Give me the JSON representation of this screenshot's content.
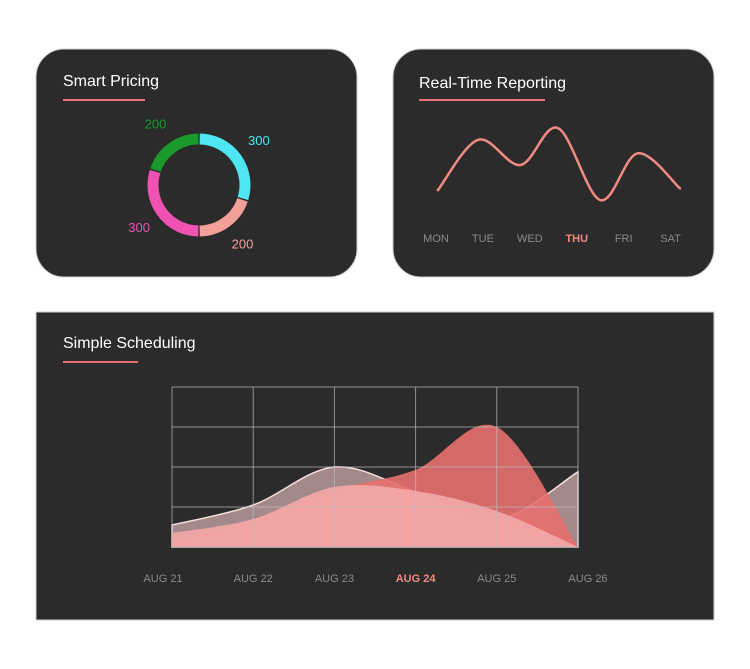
{
  "chart_data": [
    {
      "type": "donut",
      "title": "Smart Pricing",
      "values": [
        300,
        200,
        300,
        200
      ],
      "colors": [
        "#4ee6f2",
        "#f4a09a",
        "#f052b4",
        "#1a9a2a"
      ]
    },
    {
      "type": "line",
      "title": "Real-Time Reporting",
      "categories": [
        "MON",
        "TUE",
        "WED",
        "THU",
        "FRI",
        "SAT"
      ],
      "highlight_index": 3,
      "xlim": [
        0,
        5.2
      ],
      "ylim": [
        0,
        100
      ],
      "series": [
        {
          "color": "#f28b82",
          "x": [
            0.04,
            0.9,
            1.8,
            2.6,
            3.5,
            4.3,
            5.2
          ],
          "values": [
            22,
            78,
            50,
            91,
            11,
            63,
            24
          ]
        }
      ]
    },
    {
      "type": "area",
      "title": "Simple Scheduling",
      "categories": [
        "AUG 21",
        "AUG 22",
        "AUG 23",
        "AUG 24",
        "AUG 25",
        "AUG 26"
      ],
      "highlight_index": 3,
      "ylim": [
        0,
        4
      ],
      "yticks": [
        0,
        1,
        2,
        3,
        4
      ],
      "grid": true,
      "series": [
        {
          "color": "#b89a9a",
          "values": [
            0.55,
            1.05,
            2.0,
            1.38,
            0.68,
            1.88
          ]
        },
        {
          "color": "#e8706f",
          "values": [
            0.18,
            0.68,
            1.43,
            1.93,
            3.0,
            0
          ]
        },
        {
          "color": "#f4a9a8",
          "values": [
            0.35,
            0.7,
            1.5,
            1.4,
            0.9,
            0
          ]
        }
      ]
    }
  ]
}
